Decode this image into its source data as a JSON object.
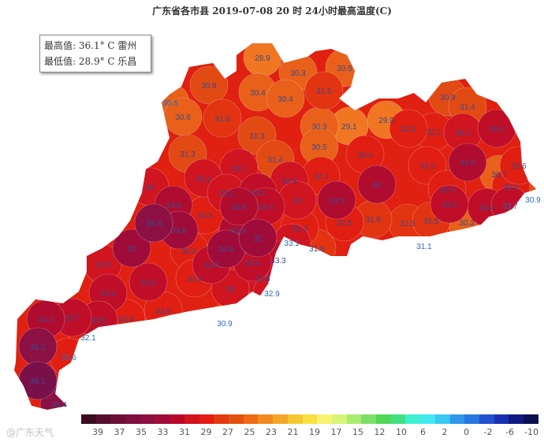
{
  "title": "广东省各市县 2019-07-08 20 时 24小时最高温度(C)",
  "stats": {
    "max_line": "最高值: 36.1° C 雷州",
    "min_line": "最低值: 28.9° C 乐昌"
  },
  "station_values": [
    "28.9",
    "30.9",
    "30.3",
    "30.5",
    "30.4",
    "30.4",
    "31.5",
    "30.5",
    "30.6",
    "31.6",
    "30.3",
    "29.1",
    "29.9",
    "31.3",
    "30.5",
    "31.3",
    "31.4",
    "30.9",
    "31.4",
    "32.5",
    "32.1",
    "33.1",
    "33.4",
    "32.4",
    "32.5",
    "33.8",
    "32.6",
    "30.7",
    "32.5",
    "30.9",
    "34",
    "32.6",
    "33.5",
    "33.4",
    "33.7",
    "33.1",
    "32.1",
    "33.1",
    "32.9",
    "33",
    "33.1",
    "33.3",
    "33",
    "33.9",
    "33.8",
    "33.9",
    "33.4",
    "32.3",
    "32.5",
    "35.8",
    "34.8",
    "32.3",
    "33.8",
    "35",
    "33.1",
    "35",
    "31.8",
    "32.2",
    "34.6",
    "33.6",
    "33.3",
    "33.4",
    "32.4",
    "33.6",
    "32.8",
    "33",
    "32.9",
    "32.8",
    "33.4",
    "31.8",
    "31.5",
    "31.5",
    "30.3",
    "31.1",
    "34.2",
    "33.7",
    "33.5",
    "32.6",
    "32.5",
    "30.9",
    "32.1",
    "35.2",
    "32.6",
    "36.1",
    "35.4"
  ],
  "colorbar": {
    "colors": [
      "#3d0a1e",
      "#55102e",
      "#6a1036",
      "#7d1040",
      "#8e1040",
      "#a00c3a",
      "#b8082a",
      "#d0141a",
      "#e41c12",
      "#e43a10",
      "#e2520e",
      "#ee6a14",
      "#f28a20",
      "#f4a628",
      "#f6c830",
      "#f8e040",
      "#f6f470",
      "#d8f478",
      "#a8ec70",
      "#7ce068",
      "#50d858",
      "#40e080",
      "#40f0d0",
      "#40e8f0",
      "#38c8f0",
      "#3098e8",
      "#2878e0",
      "#2050d0",
      "#1830b0",
      "#101a80",
      "#0a1050"
    ],
    "labels": [
      "39",
      "37",
      "35",
      "33",
      "31",
      "29",
      "27",
      "25",
      "23",
      "21",
      "19",
      "17",
      "15",
      "12",
      "10",
      "6",
      "2",
      "0",
      "-2",
      "-6",
      "-10"
    ]
  },
  "watermark": "@广东天气"
}
